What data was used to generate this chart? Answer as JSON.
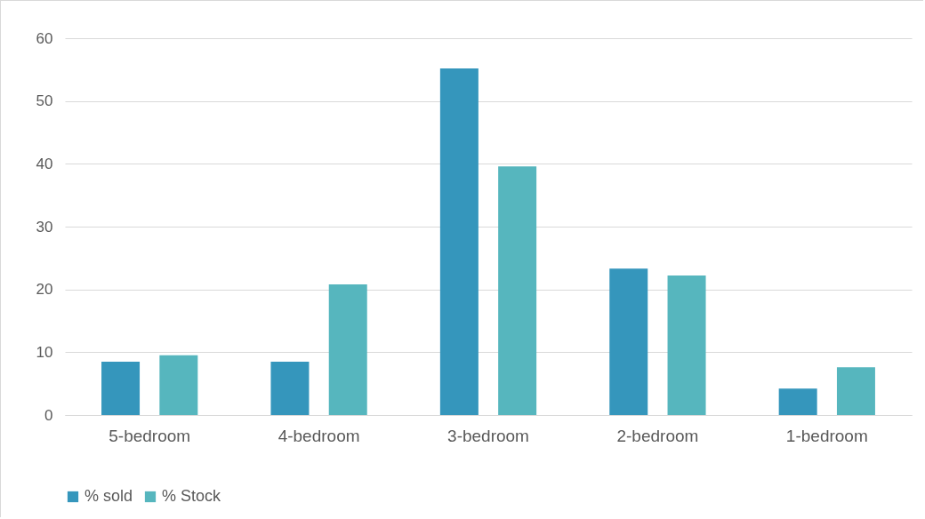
{
  "chart_data": {
    "type": "bar",
    "categories": [
      "5-bedroom",
      "4-bedroom",
      "3-bedroom",
      "2-bedroom",
      "1-bedroom"
    ],
    "series": [
      {
        "name": "% sold",
        "color": "#3596bc",
        "values": [
          8.5,
          8.5,
          55.2,
          23.3,
          4.2
        ]
      },
      {
        "name": "% Stock",
        "color": "#56b6be",
        "values": [
          9.5,
          20.8,
          39.6,
          22.2,
          7.6
        ]
      }
    ],
    "ylim": [
      0,
      60
    ],
    "yticks": [
      0,
      10,
      20,
      30,
      40,
      50,
      60
    ],
    "grid": "y",
    "legend": "bottom"
  }
}
